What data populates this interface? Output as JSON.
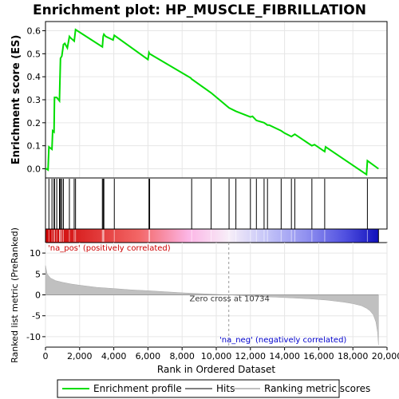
{
  "title": "Enrichment plot: HP_MUSCLE_FIBRILLATION",
  "colors": {
    "es_line": "#00dd00",
    "hits": "#000000",
    "metric_fill": "#c0c0c0",
    "zero_cross": "#999999",
    "pos_label": "#cc0000",
    "neg_label": "#0000cc",
    "grid": "#e6e6e6"
  },
  "chart_data": {
    "type": "line",
    "panels": {
      "enrichment": {
        "ylabel": "Enrichment score (ES)",
        "ylim": [
          -0.04,
          0.64
        ],
        "yticks": [
          0.0,
          0.1,
          0.2,
          0.3,
          0.4,
          0.5,
          0.6
        ],
        "ytick_labels": [
          "0.0",
          "0.1",
          "0.2",
          "0.3",
          "0.4",
          "0.5",
          "0.6"
        ],
        "series": {
          "name": "Enrichment profile",
          "x": [
            0,
            50,
            150,
            200,
            380,
            420,
            500,
            530,
            660,
            820,
            840,
            880,
            960,
            1050,
            1130,
            1280,
            1400,
            1460,
            1680,
            1760,
            3330,
            3380,
            3420,
            3530,
            3960,
            4030,
            6000,
            6060,
            6100,
            8500,
            8560,
            9700,
            10750,
            11150,
            12000,
            12120,
            12350,
            12800,
            13000,
            13100,
            13800,
            14000,
            14400,
            14600,
            15600,
            15750,
            16350,
            16400,
            18800,
            18850,
            19500
          ],
          "y": [
            0.0,
            0.0,
            -0.005,
            0.095,
            0.085,
            0.165,
            0.16,
            0.31,
            0.31,
            0.295,
            0.37,
            0.48,
            0.49,
            0.54,
            0.545,
            0.525,
            0.575,
            0.57,
            0.555,
            0.605,
            0.53,
            0.575,
            0.585,
            0.575,
            0.56,
            0.58,
            0.475,
            0.505,
            0.5,
            0.395,
            0.39,
            0.33,
            0.265,
            0.25,
            0.225,
            0.228,
            0.21,
            0.2,
            0.19,
            0.19,
            0.165,
            0.155,
            0.14,
            0.15,
            0.1,
            0.105,
            0.075,
            0.095,
            -0.025,
            0.035,
            0.0
          ]
        }
      },
      "hits": {
        "name": "Hits",
        "positions": [
          200,
          380,
          500,
          530,
          660,
          820,
          840,
          880,
          960,
          1050,
          1400,
          1680,
          1760,
          3330,
          3380,
          3420,
          4030,
          6060,
          6100,
          8560,
          9700,
          10750,
          11150,
          12000,
          12350,
          12800,
          13000,
          13800,
          14400,
          14600,
          15600,
          16350,
          18850
        ]
      },
      "ranked_metric": {
        "name": "Ranking metric scores",
        "ylabel": "Ranked list metric (PreRanked)",
        "ylim": [
          -12.5,
          12.5
        ],
        "yticks": [
          10,
          5,
          0,
          -5,
          -10
        ],
        "ytick_labels": [
          "10",
          "5",
          "0",
          "-5",
          "-10"
        ],
        "x": [
          0,
          100,
          300,
          600,
          1000,
          1500,
          2000,
          3000,
          4000,
          5000,
          6000,
          7000,
          8000,
          9000,
          10000,
          10734,
          11500,
          12500,
          13500,
          14500,
          15500,
          16500,
          17000,
          17500,
          18000,
          18500,
          18800,
          19000,
          19200,
          19350,
          19450,
          19500
        ],
        "values": [
          7.0,
          5.0,
          4.0,
          3.4,
          3.0,
          2.6,
          2.3,
          1.8,
          1.5,
          1.2,
          1.0,
          0.75,
          0.5,
          0.3,
          0.12,
          0.0,
          -0.2,
          -0.4,
          -0.55,
          -0.75,
          -0.95,
          -1.25,
          -1.5,
          -1.75,
          -2.1,
          -2.6,
          -3.2,
          -3.8,
          -4.8,
          -6.5,
          -9.0,
          -12.0
        ],
        "zero_cross_text": "Zero cross at 10734",
        "zero_cross_x": 10734,
        "pos_label": "'na_pos' (positively correlated)",
        "neg_label": "'na_neg' (negatively correlated)"
      }
    },
    "xlabel": "Rank in Ordered Dataset",
    "xlim": [
      0,
      20000
    ],
    "xticks": [
      0,
      2000,
      4000,
      6000,
      8000,
      10000,
      12000,
      14000,
      16000,
      18000,
      20000
    ],
    "xtick_labels": [
      "0",
      "2,000",
      "4,000",
      "6,000",
      "8,000",
      "10,000",
      "12,000",
      "14,000",
      "16,000",
      "18,000",
      "20,000"
    ],
    "n_genes": 19500,
    "legend": {
      "placement": "bottom",
      "entries": [
        "Enrichment profile",
        "Hits",
        "Ranking metric scores"
      ]
    }
  }
}
